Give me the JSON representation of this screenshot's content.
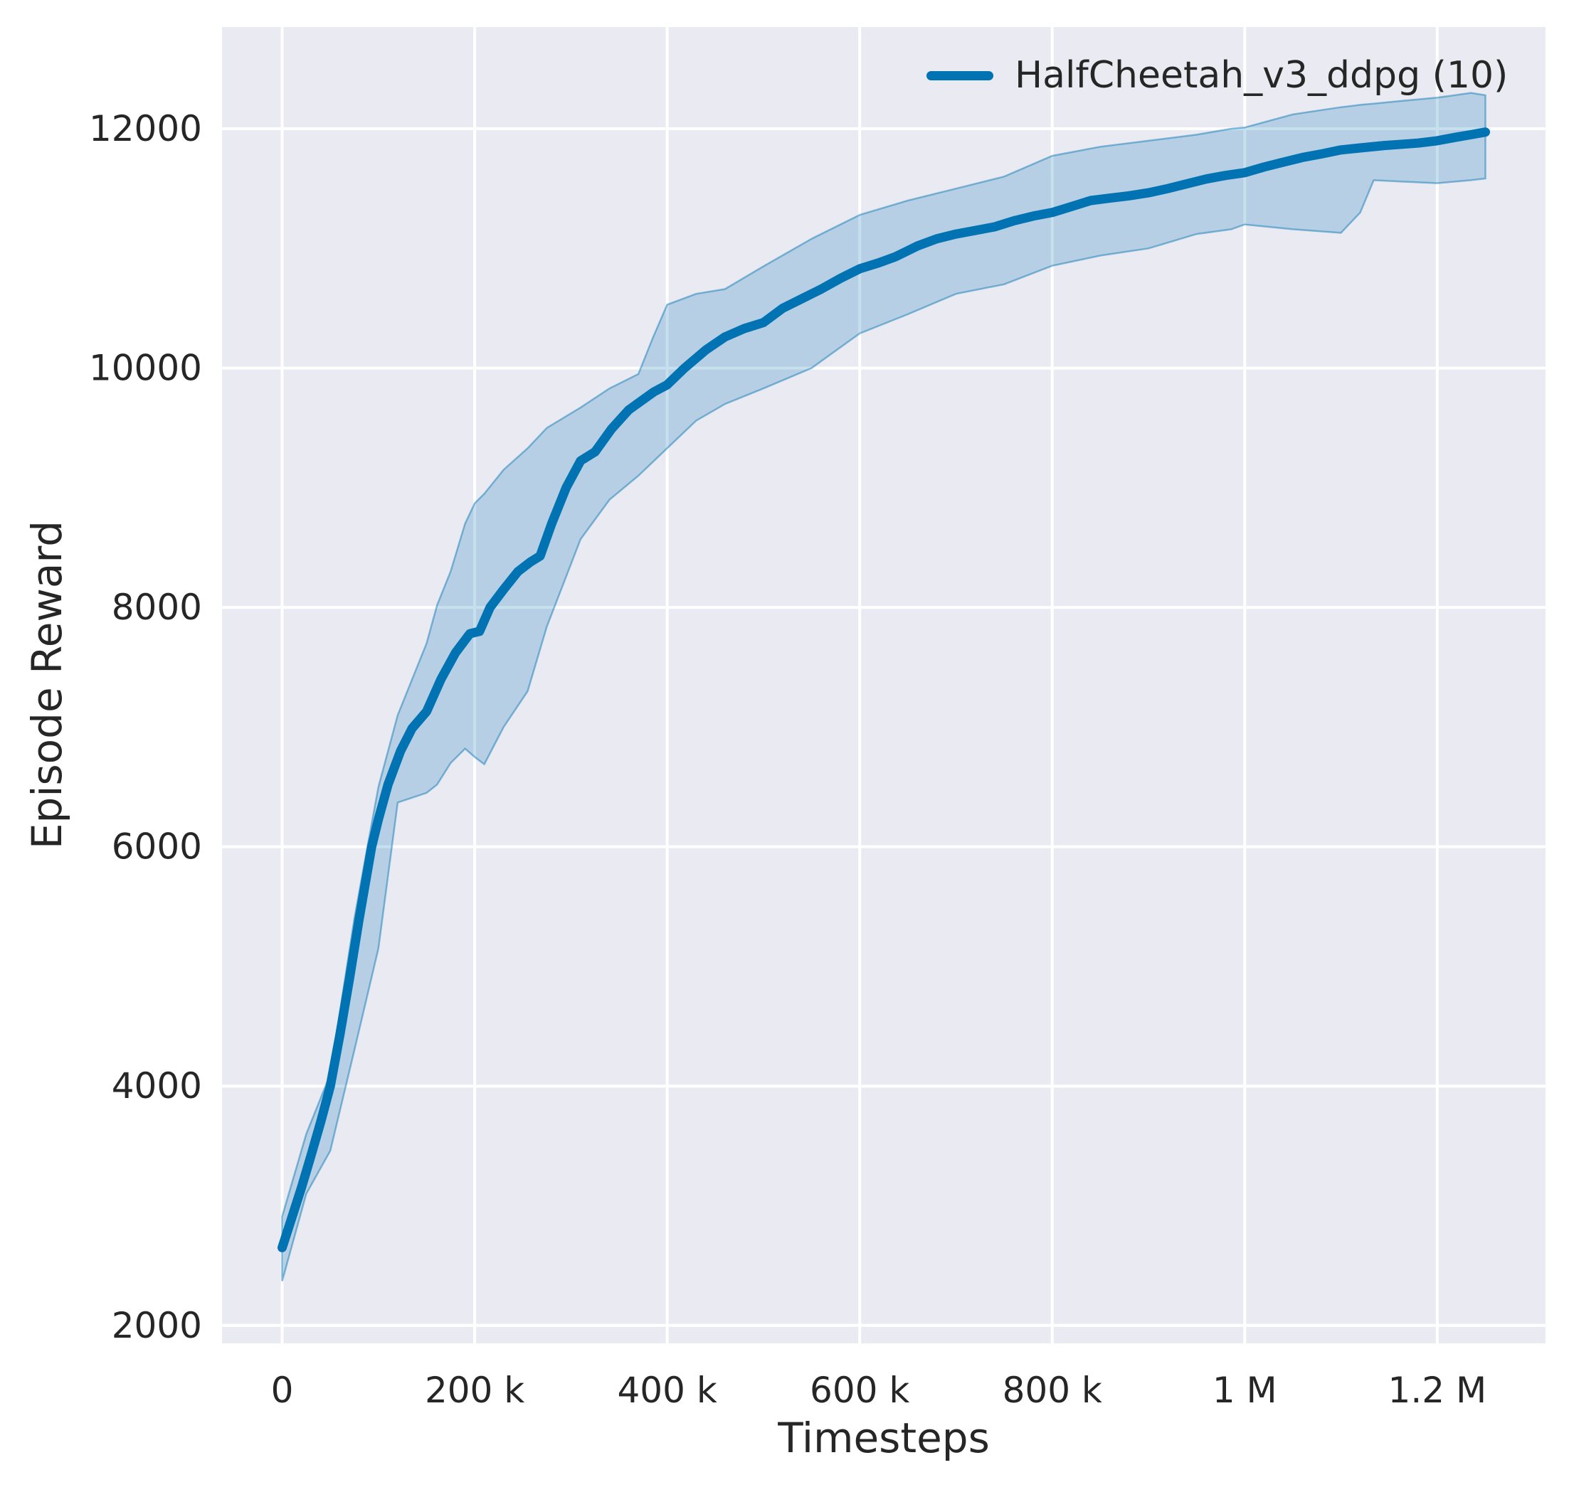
{
  "chart_data": {
    "type": "line",
    "title": "",
    "xlabel": "Timesteps",
    "ylabel": "Episode Reward",
    "grid": true,
    "legend_position": "upper right",
    "plot_bg_color": "#eaeaf2",
    "grid_color": "#ffffff",
    "text_color": "#262626",
    "xlim": [
      -62500,
      1312500
    ],
    "ylim": [
      1850,
      12850
    ],
    "xticks": [
      {
        "value": 0,
        "label": "0"
      },
      {
        "value": 200000,
        "label": "200 k"
      },
      {
        "value": 400000,
        "label": "400 k"
      },
      {
        "value": 600000,
        "label": "600 k"
      },
      {
        "value": 800000,
        "label": "800 k"
      },
      {
        "value": 1000000,
        "label": "1 M"
      },
      {
        "value": 1200000,
        "label": "1.2 M"
      }
    ],
    "yticks": [
      {
        "value": 2000,
        "label": "2000"
      },
      {
        "value": 4000,
        "label": "4000"
      },
      {
        "value": 6000,
        "label": "6000"
      },
      {
        "value": 8000,
        "label": "8000"
      },
      {
        "value": 10000,
        "label": "10000"
      },
      {
        "value": 12000,
        "label": "12000"
      }
    ],
    "legend": [
      {
        "label": "HalfCheetah_v3_ddpg (10)",
        "color": "#0173b2"
      }
    ],
    "series": [
      {
        "name": "HalfCheetah_v3_ddpg (10)",
        "color": "#0173b2",
        "line_width": 13,
        "x": [
          0,
          10000,
          20000,
          30000,
          40000,
          50000,
          60000,
          70000,
          80000,
          93000,
          100000,
          110000,
          123000,
          135000,
          150000,
          165000,
          180000,
          195000,
          205000,
          216000,
          230000,
          245000,
          258000,
          268000,
          280000,
          295000,
          310000,
          325000,
          342000,
          360000,
          386000,
          400000,
          418000,
          440000,
          460000,
          480000,
          500000,
          520000,
          540000,
          560000,
          580000,
          600000,
          620000,
          637000,
          660000,
          680000,
          700000,
          720000,
          740000,
          760000,
          780000,
          800000,
          820000,
          840000,
          860000,
          880000,
          900000,
          920000,
          940000,
          960000,
          980000,
          1000000,
          1020000,
          1040000,
          1060000,
          1080000,
          1100000,
          1120000,
          1145000,
          1160000,
          1180000,
          1200000,
          1220000,
          1235000,
          1250000
        ],
        "y": [
          2650,
          2900,
          3150,
          3420,
          3700,
          4000,
          4430,
          4900,
          5400,
          6000,
          6230,
          6520,
          6800,
          6990,
          7130,
          7400,
          7620,
          7780,
          7800,
          8000,
          8150,
          8300,
          8380,
          8430,
          8700,
          9000,
          9225,
          9300,
          9490,
          9650,
          9800,
          9860,
          10000,
          10150,
          10260,
          10330,
          10380,
          10500,
          10580,
          10660,
          10750,
          10830,
          10880,
          10930,
          11020,
          11080,
          11120,
          11150,
          11180,
          11230,
          11270,
          11300,
          11350,
          11400,
          11420,
          11440,
          11465,
          11500,
          11540,
          11580,
          11610,
          11633,
          11680,
          11720,
          11760,
          11790,
          11823,
          11840,
          11860,
          11868,
          11880,
          11900,
          11930,
          11950,
          11972
        ]
      }
    ],
    "band": {
      "name": "min-max band across 10 seeds",
      "color": "#0173b2",
      "fill_opacity": 0.22,
      "edge_opacity": 0.45,
      "x": [
        0,
        25000,
        50000,
        75000,
        100000,
        120000,
        150000,
        161000,
        175000,
        190000,
        200000,
        210000,
        230000,
        255000,
        275000,
        310000,
        340000,
        370000,
        385000,
        400000,
        430000,
        460000,
        500000,
        550000,
        600000,
        650000,
        700000,
        750000,
        800000,
        850000,
        900000,
        950000,
        986000,
        1000000,
        1050000,
        1100000,
        1120000,
        1134000,
        1160000,
        1200000,
        1235000,
        1250000
      ],
      "lo": [
        2370,
        3100,
        3460,
        4300,
        5150,
        6370,
        6450,
        6520,
        6700,
        6820,
        6750,
        6690,
        7000,
        7300,
        7840,
        8570,
        8900,
        9100,
        9215,
        9330,
        9560,
        9700,
        9830,
        10000,
        10290,
        10450,
        10620,
        10700,
        10855,
        10940,
        11000,
        11120,
        11160,
        11200,
        11160,
        11130,
        11300,
        11570,
        11560,
        11545,
        11570,
        11584
      ],
      "hi": [
        2910,
        3600,
        4100,
        5400,
        6500,
        7100,
        7700,
        8020,
        8300,
        8700,
        8870,
        8950,
        9150,
        9330,
        9500,
        9670,
        9830,
        9950,
        10250,
        10530,
        10620,
        10660,
        10850,
        11080,
        11280,
        11400,
        11500,
        11600,
        11774,
        11850,
        11900,
        11950,
        12000,
        12010,
        12120,
        12180,
        12200,
        12210,
        12230,
        12260,
        12300,
        12280
      ]
    }
  }
}
